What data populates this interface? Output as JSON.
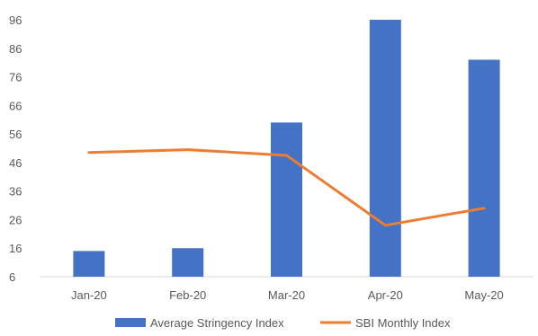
{
  "chart_data": {
    "type": "bar",
    "categories": [
      "Jan-20",
      "Feb-20",
      "Mar-20",
      "Apr-20",
      "May-20"
    ],
    "series": [
      {
        "name": "Average Stringency Index",
        "type": "bar",
        "color": "#4472C4",
        "values": [
          15,
          16,
          60,
          96,
          82
        ]
      },
      {
        "name": "SBI Monthly Index",
        "type": "line",
        "color": "#ED7D31",
        "values": [
          49.5,
          50.5,
          48.5,
          24,
          30
        ]
      }
    ],
    "yticks": [
      6,
      16,
      26,
      36,
      46,
      56,
      66,
      76,
      86,
      96
    ],
    "ylim": [
      6,
      96
    ],
    "grid": false,
    "legend_position": "bottom",
    "title": "",
    "xlabel": "",
    "ylabel": ""
  }
}
